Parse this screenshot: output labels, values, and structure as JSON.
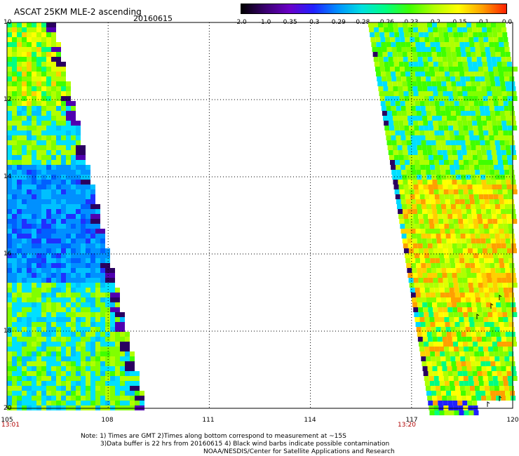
{
  "header": {
    "title": "ASCAT 25KM MLE-2 ascending",
    "date": "20160615"
  },
  "colorbar": {
    "labels": [
      "-2.0",
      "-1.0",
      "-0.35",
      "-0.3",
      "-0.29",
      "-0.28",
      "-0.26",
      "-0.23",
      "-0.2",
      "-0.15",
      "-0.1",
      "0.0"
    ],
    "colors": [
      "#000000",
      "#3a0070",
      "#6a00c8",
      "#2020ff",
      "#0090ff",
      "#00e0e0",
      "#00ff80",
      "#40ff00",
      "#b0ff00",
      "#ffff00",
      "#ffa000",
      "#ff2000"
    ]
  },
  "axes": {
    "x_ticks": [
      "105",
      "108",
      "111",
      "114",
      "117",
      "120"
    ],
    "y_ticks": [
      "10",
      "12",
      "14",
      "16",
      "18",
      "20"
    ],
    "lon_range": [
      105,
      120
    ],
    "lat_range": [
      10,
      20
    ]
  },
  "pass_times": [
    {
      "label": "13:01"
    },
    {
      "label": "13:20"
    }
  ],
  "notes": [
    "Note: 1) Times are GMT 2)Times along bottom correspond to measurement at ~15S",
    "3)Data buffer is 22 hrs from 20160615 4) Black wind barbs indicate possible contamination",
    "NOAA/NESDIS/Center for Satellite Applications and Research"
  ]
}
